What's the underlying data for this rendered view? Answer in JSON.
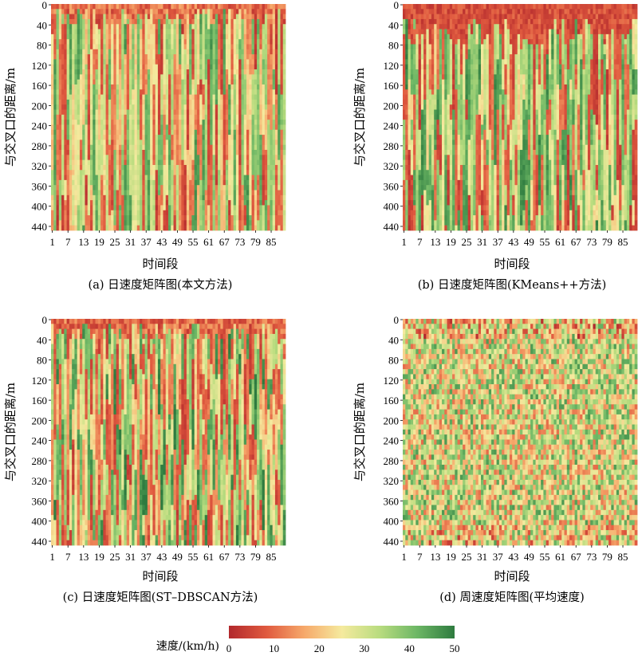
{
  "chart_data": [
    {
      "type": "heatmap",
      "caption": "(a) 日速度矩阵图(本文方法)",
      "xlabel": "时间段",
      "ylabel": "与交叉口的距离/m",
      "x_ticks": [
        "1",
        "7",
        "13",
        "19",
        "25",
        "31",
        "37",
        "43",
        "49",
        "55",
        "61",
        "67",
        "73",
        "79",
        "85"
      ],
      "y_ticks": [
        "0",
        "40",
        "80",
        "120",
        "160",
        "200",
        "240",
        "280",
        "320",
        "360",
        "400",
        "440"
      ],
      "n_cols": 90,
      "n_rows": 45,
      "value_range": [
        0,
        50
      ],
      "pattern": "vertical-bands",
      "seed": 11
    },
    {
      "type": "heatmap",
      "caption": "(b) 日速度矩阵图(KMeans++方法)",
      "xlabel": "时间段",
      "ylabel": "与交叉口的距离/m",
      "x_ticks": [
        "1",
        "7",
        "13",
        "19",
        "25",
        "31",
        "37",
        "43",
        "49",
        "55",
        "61",
        "67",
        "73",
        "79",
        "85"
      ],
      "y_ticks": [
        "0",
        "40",
        "80",
        "120",
        "160",
        "200",
        "240",
        "280",
        "320",
        "360",
        "400",
        "440"
      ],
      "n_cols": 90,
      "n_rows": 45,
      "value_range": [
        0,
        50
      ],
      "pattern": "queue-bands",
      "seed": 23
    },
    {
      "type": "heatmap",
      "caption": "(c) 日速度矩阵图(ST–DBSCAN方法)",
      "xlabel": "时间段",
      "ylabel": "与交叉口的距离/m",
      "x_ticks": [
        "1",
        "7",
        "13",
        "19",
        "25",
        "31",
        "37",
        "43",
        "49",
        "55",
        "61",
        "67",
        "73",
        "79",
        "85"
      ],
      "y_ticks": [
        "0",
        "40",
        "80",
        "120",
        "160",
        "200",
        "240",
        "280",
        "320",
        "360",
        "400",
        "440"
      ],
      "n_cols": 90,
      "n_rows": 45,
      "value_range": [
        0,
        50
      ],
      "pattern": "dense-bands",
      "seed": 37
    },
    {
      "type": "heatmap",
      "caption": "(d) 周速度矩阵图(平均速度)",
      "xlabel": "时间段",
      "ylabel": "与交叉口的距离/m",
      "x_ticks": [
        "1",
        "7",
        "13",
        "19",
        "25",
        "31",
        "37",
        "43",
        "49",
        "55",
        "61",
        "67",
        "73",
        "79",
        "85"
      ],
      "y_ticks": [
        "0",
        "40",
        "80",
        "120",
        "160",
        "200",
        "240",
        "280",
        "320",
        "360",
        "400",
        "440"
      ],
      "n_cols": 90,
      "n_rows": 45,
      "value_range": [
        0,
        50
      ],
      "pattern": "noise",
      "seed": 53
    }
  ],
  "colorbar": {
    "label": "速度/(km/h)",
    "ticks": [
      "0",
      "10",
      "20",
      "30",
      "40",
      "50"
    ],
    "range": [
      0,
      50
    ],
    "colors": [
      "#b2282c",
      "#e05a3f",
      "#f6a86a",
      "#f5ea9e",
      "#b9dc7f",
      "#6db765",
      "#2e7b3f"
    ]
  }
}
